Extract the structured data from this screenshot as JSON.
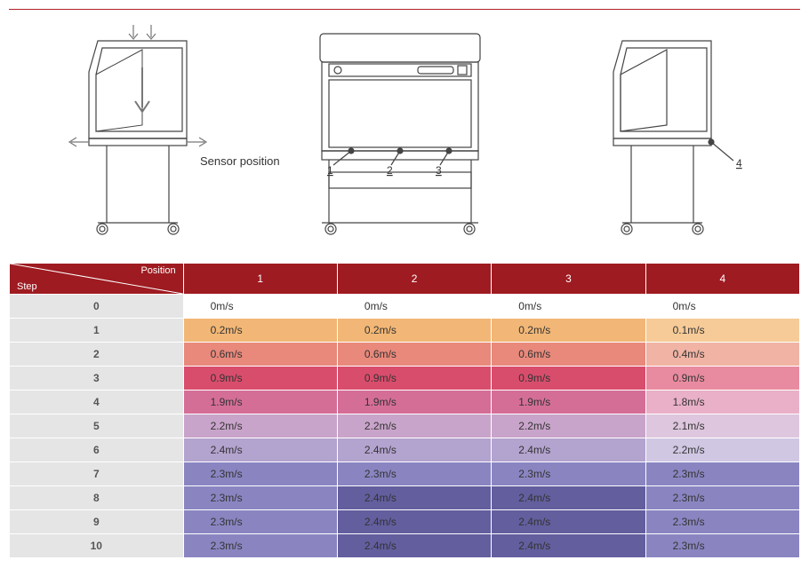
{
  "sensor_label": "Sensor position",
  "sensor_numbers": [
    "1",
    "2",
    "3",
    "4"
  ],
  "header": {
    "position_label": "Position",
    "step_label": "Step",
    "columns": [
      "1",
      "2",
      "3",
      "4"
    ],
    "bg": "#9e1b21",
    "fg": "#ffffff"
  },
  "step_col_bg": "#e5e5e5",
  "table": {
    "type": "table_heatmap",
    "columns": [
      "Step",
      "1",
      "2",
      "3",
      "4"
    ],
    "col_widths_pct": [
      22,
      19.5,
      19.5,
      19.5,
      19.5
    ],
    "rows": [
      {
        "step": "0",
        "cells": [
          {
            "v": "0m/s",
            "bg": "#ffffff"
          },
          {
            "v": "0m/s",
            "bg": "#ffffff"
          },
          {
            "v": "0m/s",
            "bg": "#ffffff"
          },
          {
            "v": "0m/s",
            "bg": "#ffffff"
          }
        ]
      },
      {
        "step": "1",
        "cells": [
          {
            "v": "0.2m/s",
            "bg": "#f2b776"
          },
          {
            "v": "0.2m/s",
            "bg": "#f2b776"
          },
          {
            "v": "0.2m/s",
            "bg": "#f2b776"
          },
          {
            "v": "0.1m/s",
            "bg": "#f6cb98"
          }
        ]
      },
      {
        "step": "2",
        "cells": [
          {
            "v": "0.6m/s",
            "bg": "#e8897b"
          },
          {
            "v": "0.6m/s",
            "bg": "#e8897b"
          },
          {
            "v": "0.6m/s",
            "bg": "#e8897b"
          },
          {
            "v": "0.4m/s",
            "bg": "#f0b3a4"
          }
        ]
      },
      {
        "step": "3",
        "cells": [
          {
            "v": "0.9m/s",
            "bg": "#d94d6c"
          },
          {
            "v": "0.9m/s",
            "bg": "#d94d6c"
          },
          {
            "v": "0.9m/s",
            "bg": "#d94d6c"
          },
          {
            "v": "0.9m/s",
            "bg": "#e98ba0"
          }
        ]
      },
      {
        "step": "4",
        "cells": [
          {
            "v": "1.9m/s",
            "bg": "#d56e97"
          },
          {
            "v": "1.9m/s",
            "bg": "#d56e97"
          },
          {
            "v": "1.9m/s",
            "bg": "#d56e97"
          },
          {
            "v": "1.8m/s",
            "bg": "#e9b0c7"
          }
        ]
      },
      {
        "step": "5",
        "cells": [
          {
            "v": "2.2m/s",
            "bg": "#c9a4ca"
          },
          {
            "v": "2.2m/s",
            "bg": "#c9a4ca"
          },
          {
            "v": "2.2m/s",
            "bg": "#c9a4ca"
          },
          {
            "v": "2.1m/s",
            "bg": "#ddc6de"
          }
        ]
      },
      {
        "step": "6",
        "cells": [
          {
            "v": "2.4m/s",
            "bg": "#b3a3cf"
          },
          {
            "v": "2.4m/s",
            "bg": "#b3a3cf"
          },
          {
            "v": "2.4m/s",
            "bg": "#b3a3cf"
          },
          {
            "v": "2.2m/s",
            "bg": "#d0c7e3"
          }
        ]
      },
      {
        "step": "7",
        "cells": [
          {
            "v": "2.3m/s",
            "bg": "#8a85c1"
          },
          {
            "v": "2.3m/s",
            "bg": "#8a85c1"
          },
          {
            "v": "2.3m/s",
            "bg": "#8a85c1"
          },
          {
            "v": "2.3m/s",
            "bg": "#8a85c1"
          }
        ]
      },
      {
        "step": "8",
        "cells": [
          {
            "v": "2.3m/s",
            "bg": "#8a85c1"
          },
          {
            "v": "2.4m/s",
            "bg": "#635e9e"
          },
          {
            "v": "2.4m/s",
            "bg": "#635e9e"
          },
          {
            "v": "2.3m/s",
            "bg": "#8a85c1"
          }
        ]
      },
      {
        "step": "9",
        "cells": [
          {
            "v": "2.3m/s",
            "bg": "#8a85c1"
          },
          {
            "v": "2.4m/s",
            "bg": "#635e9e"
          },
          {
            "v": "2.4m/s",
            "bg": "#635e9e"
          },
          {
            "v": "2.3m/s",
            "bg": "#8a85c1"
          }
        ]
      },
      {
        "step": "10",
        "cells": [
          {
            "v": "2.3m/s",
            "bg": "#8a85c1"
          },
          {
            "v": "2.4m/s",
            "bg": "#635e9e"
          },
          {
            "v": "2.4m/s",
            "bg": "#635e9e"
          },
          {
            "v": "2.3m/s",
            "bg": "#8a85c1"
          }
        ]
      }
    ]
  }
}
